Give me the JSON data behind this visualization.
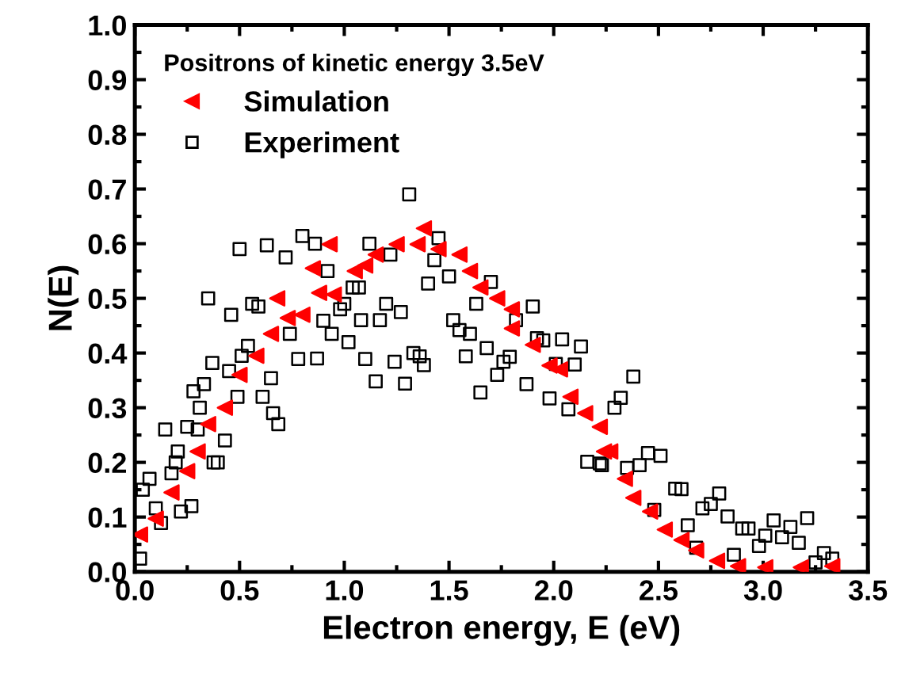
{
  "chart_data": {
    "type": "scatter",
    "xlabel": "Electron energy, E (eV)",
    "ylabel": "N(E)",
    "legend_title": "Positrons of kinetic energy 3.5eV",
    "legend": "top left",
    "grid": false,
    "xlim": [
      0,
      3.5
    ],
    "ylim": [
      0,
      1.0
    ],
    "xticks": [
      {
        "value": 0,
        "label": "0.0"
      },
      0.5,
      {
        "value": 1,
        "label": "1.0"
      },
      1.5,
      {
        "value": 2,
        "label": "2.0"
      },
      2.5,
      {
        "value": 3,
        "label": "3.0"
      },
      3.5
    ],
    "yticks": [
      {
        "value": 0,
        "label": "0.0"
      },
      0.1,
      0.2,
      0.3,
      0.4,
      0.5,
      0.6,
      0.7,
      0.8,
      0.9,
      {
        "value": 1,
        "label": "1.0"
      }
    ],
    "series": [
      {
        "name": "Simulation",
        "color": "#ff0000",
        "marker": "triangle",
        "x": [
          0.025,
          0.1,
          0.175,
          0.25,
          0.3,
          0.35,
          0.43,
          0.5,
          0.58,
          0.65,
          0.68,
          0.73,
          0.8,
          0.85,
          0.88,
          0.93,
          0.95,
          1.05,
          1.1,
          1.15,
          1.25,
          1.35,
          1.38,
          1.45,
          1.55,
          1.6,
          1.65,
          1.73,
          1.8,
          1.8,
          1.9,
          1.98,
          2.03,
          2.08,
          2.15,
          2.22,
          2.24,
          2.27,
          2.34,
          2.38,
          2.46,
          2.53,
          2.61,
          2.68,
          2.78,
          2.88,
          3.01,
          3.18,
          3.33
        ],
        "values": [
          0.068,
          0.097,
          0.145,
          0.184,
          0.22,
          0.27,
          0.3,
          0.36,
          0.395,
          0.435,
          0.5,
          0.464,
          0.47,
          0.555,
          0.51,
          0.599,
          0.507,
          0.55,
          0.56,
          0.58,
          0.599,
          0.599,
          0.628,
          0.59,
          0.58,
          0.55,
          0.52,
          0.5,
          0.48,
          0.445,
          0.415,
          0.377,
          0.37,
          0.32,
          0.29,
          0.265,
          0.22,
          0.22,
          0.17,
          0.135,
          0.11,
          0.077,
          0.058,
          0.039,
          0.02,
          0.01,
          0.008,
          0.008,
          0.01
        ]
      },
      {
        "name": "Experiment",
        "color": "#000000",
        "marker": "square",
        "x": [
          0.025,
          0.038,
          0.07,
          0.1,
          0.125,
          0.145,
          0.175,
          0.195,
          0.205,
          0.22,
          0.25,
          0.27,
          0.28,
          0.3,
          0.31,
          0.33,
          0.35,
          0.37,
          0.376,
          0.396,
          0.43,
          0.45,
          0.46,
          0.49,
          0.5,
          0.51,
          0.54,
          0.56,
          0.59,
          0.61,
          0.63,
          0.65,
          0.66,
          0.685,
          0.72,
          0.74,
          0.78,
          0.8,
          0.86,
          0.87,
          0.9,
          0.92,
          0.94,
          0.98,
          1.0,
          1.02,
          1.04,
          1.07,
          1.08,
          1.1,
          1.12,
          1.15,
          1.17,
          1.2,
          1.22,
          1.24,
          1.27,
          1.29,
          1.31,
          1.33,
          1.36,
          1.38,
          1.4,
          1.43,
          1.45,
          1.5,
          1.52,
          1.55,
          1.58,
          1.6,
          1.63,
          1.65,
          1.68,
          1.7,
          1.73,
          1.76,
          1.79,
          1.82,
          1.87,
          1.9,
          1.92,
          1.95,
          1.98,
          2.01,
          2.04,
          2.07,
          2.1,
          2.13,
          2.16,
          2.22,
          2.23,
          2.29,
          2.32,
          2.35,
          2.38,
          2.41,
          2.45,
          2.48,
          2.51,
          2.58,
          2.61,
          2.64,
          2.68,
          2.71,
          2.75,
          2.79,
          2.83,
          2.86,
          2.9,
          2.93,
          2.98,
          3.01,
          3.05,
          3.09,
          3.13,
          3.17,
          3.21,
          3.25,
          3.29,
          3.33
        ],
        "values": [
          0.024,
          0.15,
          0.17,
          0.116,
          0.089,
          0.26,
          0.18,
          0.2,
          0.22,
          0.11,
          0.265,
          0.12,
          0.33,
          0.26,
          0.3,
          0.343,
          0.5,
          0.382,
          0.2,
          0.2,
          0.24,
          0.367,
          0.47,
          0.32,
          0.59,
          0.395,
          0.413,
          0.49,
          0.485,
          0.32,
          0.597,
          0.354,
          0.29,
          0.27,
          0.575,
          0.435,
          0.389,
          0.614,
          0.6,
          0.39,
          0.459,
          0.55,
          0.435,
          0.48,
          0.49,
          0.42,
          0.52,
          0.52,
          0.46,
          0.389,
          0.6,
          0.348,
          0.46,
          0.49,
          0.58,
          0.384,
          0.475,
          0.344,
          0.69,
          0.4,
          0.394,
          0.378,
          0.527,
          0.57,
          0.61,
          0.54,
          0.46,
          0.442,
          0.394,
          0.435,
          0.49,
          0.328,
          0.409,
          0.53,
          0.36,
          0.384,
          0.393,
          0.46,
          0.343,
          0.485,
          0.427,
          0.423,
          0.317,
          0.38,
          0.425,
          0.297,
          0.379,
          0.412,
          0.201,
          0.198,
          0.195,
          0.3,
          0.318,
          0.19,
          0.357,
          0.195,
          0.217,
          0.113,
          0.212,
          0.152,
          0.151,
          0.085,
          0.044,
          0.116,
          0.124,
          0.143,
          0.101,
          0.031,
          0.079,
          0.079,
          0.047,
          0.066,
          0.094,
          0.063,
          0.082,
          0.053,
          0.098,
          0.017,
          0.034,
          0.024
        ]
      }
    ]
  }
}
